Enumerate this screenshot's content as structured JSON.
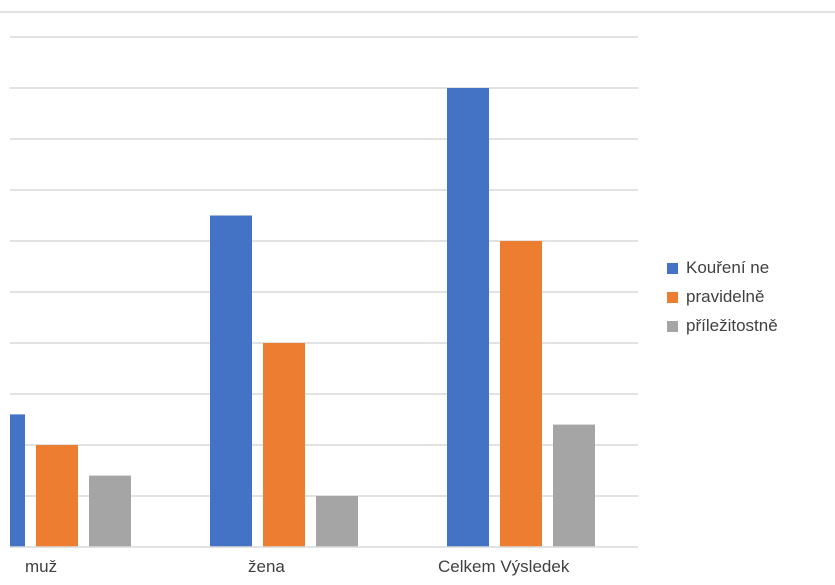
{
  "chart_data": {
    "type": "bar",
    "title": "",
    "xlabel": "",
    "ylabel": "",
    "ylim": [
      0,
      10.5
    ],
    "categories": [
      "muž",
      "žena",
      "Celkem Výsledek"
    ],
    "series": [
      {
        "name": "Kouření ne",
        "color": "#4472C4",
        "values": [
          2.6,
          6.5,
          9
        ]
      },
      {
        "name": "pravidelně",
        "color": "#ED7D31",
        "values": [
          2,
          4,
          6
        ]
      },
      {
        "name": "příležitostně",
        "color": "#A5A5A5",
        "values": [
          1.4,
          1,
          2.4
        ]
      }
    ],
    "grid": true,
    "gridline_step": 1,
    "legend_position": "right",
    "gridline_color": "#D9D9D9"
  }
}
